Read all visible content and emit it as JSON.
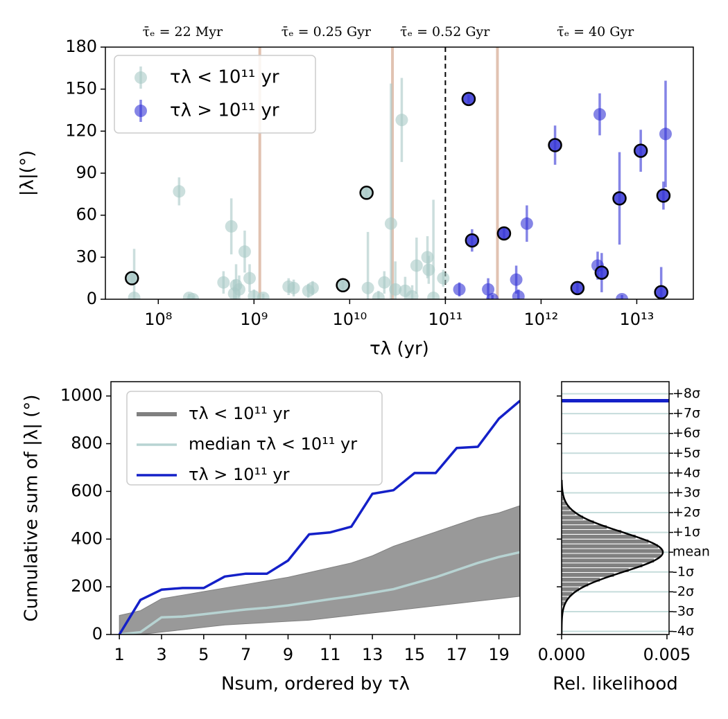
{
  "chart_data": [
    {
      "type": "scatter",
      "xscale": "log",
      "xlim": [
        28000000.0,
        39000000000000.0
      ],
      "ylim": [
        0,
        180
      ],
      "xticks": [
        {
          "value": 100000000.0,
          "label": "10⁸"
        },
        {
          "value": 1000000000.0,
          "label": "10⁹"
        },
        {
          "value": 10000000000.0,
          "label": "10¹⁰"
        },
        {
          "value": 100000000000.0,
          "label": "10¹¹"
        },
        {
          "value": 1000000000000.0,
          "label": "10¹²"
        },
        {
          "value": 10000000000000.0,
          "label": "10¹³"
        }
      ],
      "yticks": [
        0,
        30,
        60,
        90,
        120,
        150,
        180
      ],
      "xlabel": "τλ (yr)",
      "ylabel": "|λ|(°)",
      "legend": "upper left",
      "series": [
        {
          "name": "τλ < 10¹¹ yr",
          "color": "#a9c9c7",
          "x": [
            53000000.0,
            56000000.0,
            165000000.0,
            210000000.0,
            230000000.0,
            480000000.0,
            580000000.0,
            620000000.0,
            650000000.0,
            700000000.0,
            800000000.0,
            900000000.0,
            1000000000.0,
            1250000000.0,
            2300000000.0,
            2600000000.0,
            3700000000.0,
            4100000000.0,
            8500000000.0,
            15000000000.0,
            15500000000.0,
            20000000000.0,
            23000000000.0,
            27000000000.0,
            30000000000.0,
            35000000000.0,
            38000000000.0,
            45000000000.0,
            50000000000.0,
            65000000000.0,
            67000000000.0,
            75000000000.0,
            95000000000.0
          ],
          "values": [
            15,
            1,
            77,
            1,
            0,
            12,
            52,
            4,
            10,
            7,
            34,
            15,
            2,
            1,
            9,
            8,
            6,
            8,
            10,
            76,
            8,
            1,
            12,
            54,
            7,
            128,
            6,
            2,
            24,
            30,
            21,
            1,
            15
          ],
          "errors": [
            5,
            35,
            10,
            3,
            2,
            8,
            20,
            10,
            15,
            10,
            15,
            10,
            5,
            3,
            6,
            6,
            5,
            5,
            3,
            4,
            40,
            5,
            8,
            100,
            20,
            30,
            10,
            8,
            20,
            15,
            10,
            70,
            6
          ],
          "outlined": [
            true,
            false,
            false,
            false,
            false,
            false,
            false,
            false,
            false,
            false,
            false,
            false,
            false,
            false,
            false,
            false,
            false,
            false,
            true,
            true,
            false,
            false,
            false,
            false,
            false,
            false,
            false,
            false,
            false,
            false,
            false,
            false,
            false
          ]
        },
        {
          "name": "τλ > 10¹¹ yr",
          "color": "#3434d6",
          "x": [
            140000000000.0,
            175000000000.0,
            190000000000.0,
            280000000000.0,
            310000000000.0,
            410000000000.0,
            550000000000.0,
            580000000000.0,
            710000000000.0,
            1400000000000.0,
            2400000000000.0,
            3900000000000.0,
            4100000000000.0,
            4300000000000.0,
            6600000000000.0,
            7000000000000.0,
            11000000000000.0,
            18000000000000.0,
            19000000000000.0,
            20000000000000.0
          ],
          "values": [
            7,
            143,
            42,
            7,
            0,
            47,
            14,
            2,
            54,
            110,
            8,
            24,
            132,
            19,
            72,
            0,
            106,
            5,
            74,
            118
          ],
          "errors": [
            5,
            3,
            8,
            8,
            3,
            4,
            10,
            5,
            13,
            14,
            4,
            10,
            15,
            14,
            33,
            3,
            15,
            18,
            10,
            38
          ],
          "outlined": [
            false,
            true,
            true,
            false,
            false,
            true,
            false,
            false,
            false,
            true,
            true,
            false,
            false,
            true,
            true,
            false,
            true,
            true,
            true,
            false
          ]
        }
      ],
      "vlines": {
        "x": [
          1150000000.0,
          28000000000.0,
          350000000000.0
        ],
        "color": "#dcb8a4"
      },
      "threshold": {
        "x": 100000000000.0,
        "style": "dashed"
      },
      "annotations": [
        "τ̄ₑ = 22 Myr",
        "τ̄ₑ = 0.25 Gyr",
        "τ̄ₑ = 0.52 Gyr",
        "τ̄ₑ = 40 Gyr"
      ],
      "annotation_color": "#c49a82"
    },
    {
      "type": "line",
      "xlim": [
        0.6,
        20
      ],
      "ylim": [
        0,
        1060
      ],
      "xticks": [
        1,
        3,
        5,
        7,
        9,
        11,
        13,
        15,
        17,
        19
      ],
      "yticks": [
        0,
        200,
        400,
        600,
        800,
        1000
      ],
      "xlabel": "Nsum, ordered by τλ",
      "ylabel": "Cumulative sum of |λ| (°)",
      "legend": "upper left",
      "x": [
        1,
        2,
        3,
        4,
        5,
        6,
        7,
        8,
        9,
        10,
        11,
        12,
        13,
        14,
        15,
        16,
        17,
        18,
        19,
        20
      ],
      "series": [
        {
          "name": "τλ < 10¹¹ yr",
          "color": "#808080",
          "kind": "band",
          "upper": [
            80,
            100,
            150,
            165,
            180,
            195,
            210,
            225,
            240,
            260,
            280,
            300,
            330,
            370,
            400,
            430,
            460,
            490,
            510,
            540
          ],
          "lower": [
            0,
            0,
            10,
            20,
            30,
            40,
            45,
            50,
            55,
            60,
            70,
            80,
            90,
            100,
            110,
            120,
            130,
            140,
            150,
            160
          ]
        },
        {
          "name": "median τλ < 10¹¹ yr",
          "color": "#b7d3d2",
          "values": [
            0,
            10,
            72,
            75,
            85,
            95,
            105,
            112,
            122,
            135,
            148,
            160,
            175,
            190,
            215,
            240,
            270,
            300,
            325,
            345
          ]
        },
        {
          "name": "τλ > 10¹¹ yr",
          "color": "#1420c8",
          "values": [
            0,
            145,
            188,
            195,
            195,
            243,
            255,
            255,
            310,
            420,
            428,
            452,
            590,
            605,
            677,
            677,
            782,
            787,
            905,
            980
          ]
        }
      ]
    },
    {
      "type": "histogram",
      "orientation": "horizontal",
      "xlim": [
        0,
        0.0051
      ],
      "ylim": [
        0,
        1060
      ],
      "xticks": [
        {
          "value": 0,
          "label": "0.000"
        },
        {
          "value": 0.005,
          "label": "0.005"
        }
      ],
      "yticks": [
        {
          "value": 1009,
          "label": "+8σ"
        },
        {
          "value": 926,
          "label": "+7σ"
        },
        {
          "value": 843,
          "label": "+6σ"
        },
        {
          "value": 760,
          "label": "+5σ"
        },
        {
          "value": 677,
          "label": "+4σ"
        },
        {
          "value": 594,
          "label": "+3σ"
        },
        {
          "value": 511,
          "label": "+2σ"
        },
        {
          "value": 428,
          "label": "+1σ"
        },
        {
          "value": 345,
          "label": "mean"
        },
        {
          "value": 262,
          "label": "-1σ"
        },
        {
          "value": 179,
          "label": "-2σ"
        },
        {
          "value": 96,
          "label": "-3σ"
        },
        {
          "value": 13,
          "label": "-4σ"
        }
      ],
      "shared_yticks": [
        0,
        200,
        400,
        600,
        800,
        1000
      ],
      "xlabel": "Rel. likelihood",
      "bins": [
        120,
        140,
        160,
        180,
        200,
        220,
        240,
        260,
        280,
        300,
        320,
        340,
        360,
        380,
        400,
        420,
        440,
        460,
        480,
        500,
        520,
        540,
        560,
        580,
        600
      ],
      "counts": [
        0.00017,
        0.0003,
        0.00052,
        0.00084,
        0.00128,
        0.00183,
        0.0025,
        0.0032,
        0.00385,
        0.0044,
        0.00472,
        0.0048,
        0.00459,
        0.00414,
        0.00353,
        0.00285,
        0.00216,
        0.00155,
        0.00104,
        0.00066,
        0.0004,
        0.00023,
        0.00012,
        6e-05
      ],
      "color": "#808080",
      "fit": {
        "mean": 345,
        "sigma": 83
      },
      "observed": 980,
      "observed_color": "#1420c8",
      "grid": true,
      "grid_color": "#c5dcdb"
    }
  ]
}
